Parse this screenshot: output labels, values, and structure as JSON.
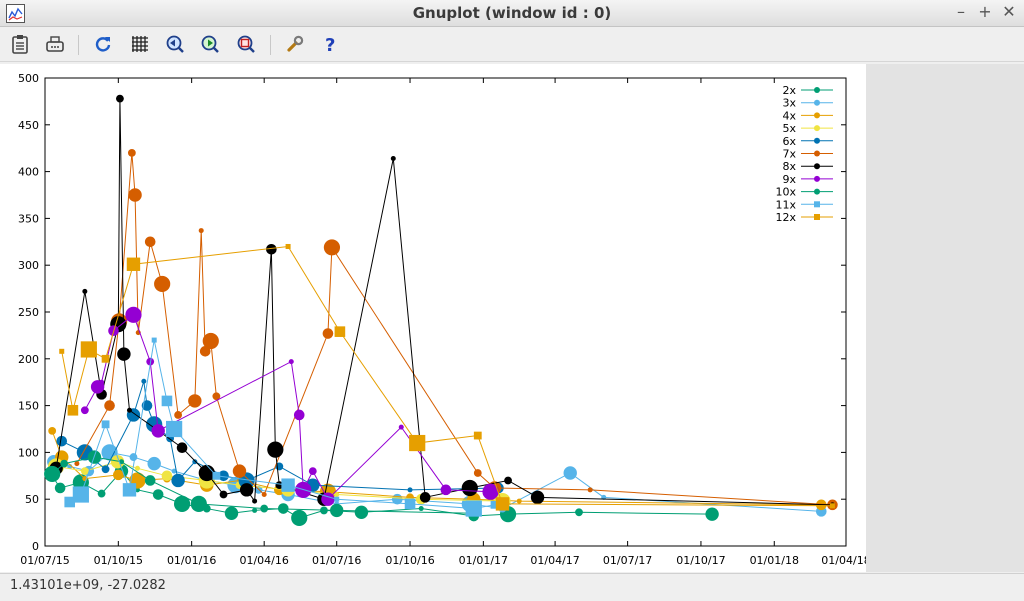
{
  "window": {
    "title": "Gnuplot (window id : 0)",
    "minimize": "–",
    "maximize": "+",
    "close": "✕"
  },
  "toolbar": {
    "buttons": [
      {
        "name": "copy-clipboard-button",
        "icon": "clipboard-icon"
      },
      {
        "name": "print-button",
        "icon": "printer-icon"
      },
      {
        "name": "replot-button",
        "icon": "refresh-icon"
      },
      {
        "name": "grid-button",
        "icon": "grid-icon"
      },
      {
        "name": "previous-zoom-button",
        "icon": "zoom-back-icon"
      },
      {
        "name": "next-zoom-button",
        "icon": "zoom-forward-icon"
      },
      {
        "name": "autoscale-button",
        "icon": "autoscale-icon"
      },
      {
        "name": "settings-button",
        "icon": "wrench-icon"
      },
      {
        "name": "help-button",
        "icon": "help-icon"
      }
    ]
  },
  "status": {
    "coords": "1.43101e+09, -27.0282"
  },
  "chart_data": {
    "type": "scatter",
    "title": "",
    "xlabel": "",
    "ylabel": "",
    "ylim": [
      0,
      500
    ],
    "yticks": [
      0,
      50,
      100,
      150,
      200,
      250,
      300,
      350,
      400,
      450,
      500
    ],
    "xticks": [
      "01/07/15",
      "01/10/15",
      "01/01/16",
      "01/04/16",
      "01/07/16",
      "01/10/16",
      "01/01/17",
      "01/04/17",
      "01/07/17",
      "01/10/17",
      "01/01/18",
      "01/04/18"
    ],
    "xlim": [
      "2015-07-01",
      "2018-04-01"
    ],
    "grid": false,
    "legend_position": "top-right",
    "series": [
      {
        "name": "2x",
        "color": "#009e73",
        "marker": "circle",
        "points": [
          [
            "2015-07-10",
            75
          ],
          [
            "2015-07-20",
            62
          ],
          [
            "2015-08-15",
            68
          ],
          [
            "2015-09-10",
            56
          ],
          [
            "2015-10-05",
            80
          ],
          [
            "2015-10-25",
            60
          ],
          [
            "2015-11-20",
            55
          ],
          [
            "2015-12-20",
            45
          ],
          [
            "2016-01-20",
            40
          ],
          [
            "2016-02-20",
            35
          ],
          [
            "2016-03-20",
            38
          ],
          [
            "2016-04-25",
            40
          ],
          [
            "2016-05-15",
            30
          ],
          [
            "2016-06-15",
            38
          ],
          [
            "2016-08-01",
            36
          ],
          [
            "2016-10-15",
            40
          ],
          [
            "2016-12-20",
            32
          ],
          [
            "2017-02-01",
            34
          ],
          [
            "2017-05-01",
            36
          ],
          [
            "2017-10-15",
            34
          ]
        ]
      },
      {
        "name": "3x",
        "color": "#56b4e9",
        "marker": "circle",
        "points": [
          [
            "2015-07-12",
            90
          ],
          [
            "2015-08-01",
            85
          ],
          [
            "2015-08-25",
            80
          ],
          [
            "2015-09-20",
            100
          ],
          [
            "2015-10-20",
            95
          ],
          [
            "2015-11-15",
            88
          ],
          [
            "2015-12-10",
            80
          ],
          [
            "2016-01-20",
            70
          ],
          [
            "2016-02-25",
            65
          ],
          [
            "2016-03-25",
            60
          ],
          [
            "2016-05-01",
            55
          ],
          [
            "2016-07-01",
            45
          ],
          [
            "2016-09-15",
            50
          ],
          [
            "2016-12-15",
            45
          ],
          [
            "2017-01-25",
            40
          ],
          [
            "2017-04-20",
            78
          ],
          [
            "2017-06-01",
            52
          ],
          [
            "2018-03-01",
            37
          ]
        ]
      },
      {
        "name": "4x",
        "color": "#e69f00",
        "marker": "circle",
        "points": [
          [
            "2015-07-10",
            123
          ],
          [
            "2015-07-22",
            95
          ],
          [
            "2015-08-20",
            72
          ],
          [
            "2015-10-01",
            76
          ],
          [
            "2015-10-25",
            70
          ],
          [
            "2015-12-01",
            72
          ],
          [
            "2016-01-20",
            65
          ],
          [
            "2016-03-01",
            70
          ],
          [
            "2016-04-20",
            60
          ],
          [
            "2016-06-20",
            58
          ],
          [
            "2016-10-01",
            52
          ],
          [
            "2016-12-20",
            50
          ],
          [
            "2017-02-15",
            48
          ],
          [
            "2018-03-01",
            44
          ]
        ]
      },
      {
        "name": "5x",
        "color": "#f0e442",
        "marker": "circle",
        "points": [
          [
            "2015-07-15",
            85
          ],
          [
            "2015-08-20",
            80
          ],
          [
            "2015-09-30",
            90
          ],
          [
            "2015-10-25",
            83
          ],
          [
            "2015-12-01",
            75
          ],
          [
            "2016-01-20",
            70
          ],
          [
            "2016-03-01",
            65
          ],
          [
            "2016-05-01",
            60
          ],
          [
            "2016-07-01",
            55
          ],
          [
            "2016-10-15",
            50
          ],
          [
            "2017-01-25",
            48
          ]
        ]
      },
      {
        "name": "6x",
        "color": "#0072b2",
        "marker": "circle",
        "points": [
          [
            "2015-07-22",
            112
          ],
          [
            "2015-08-20",
            100
          ],
          [
            "2015-09-15",
            82
          ],
          [
            "2015-10-20",
            140
          ],
          [
            "2015-11-02",
            176
          ],
          [
            "2015-11-06",
            150
          ],
          [
            "2015-11-15",
            130
          ],
          [
            "2015-12-05",
            115
          ],
          [
            "2015-12-15",
            70
          ],
          [
            "2016-01-05",
            90
          ],
          [
            "2016-02-10",
            75
          ],
          [
            "2016-03-10",
            70
          ],
          [
            "2016-04-20",
            85
          ],
          [
            "2016-06-01",
            65
          ],
          [
            "2016-10-01",
            60
          ],
          [
            "2017-01-20",
            62
          ]
        ]
      },
      {
        "name": "7x",
        "color": "#d55e00",
        "marker": "circle",
        "points": [
          [
            "2015-08-10",
            88
          ],
          [
            "2015-09-20",
            150
          ],
          [
            "2015-10-02",
            240
          ],
          [
            "2015-10-18",
            420
          ],
          [
            "2015-10-22",
            375
          ],
          [
            "2015-10-26",
            228
          ],
          [
            "2015-11-10",
            325
          ],
          [
            "2015-11-25",
            280
          ],
          [
            "2015-12-15",
            140
          ],
          [
            "2016-01-05",
            155
          ],
          [
            "2016-01-13",
            337
          ],
          [
            "2016-01-18",
            208
          ],
          [
            "2016-01-25",
            219
          ],
          [
            "2016-02-01",
            160
          ],
          [
            "2016-03-01",
            80
          ],
          [
            "2016-04-01",
            55
          ],
          [
            "2016-06-20",
            227
          ],
          [
            "2016-06-25",
            319
          ],
          [
            "2016-12-25",
            78
          ],
          [
            "2017-01-15",
            62
          ],
          [
            "2017-05-15",
            60
          ],
          [
            "2018-03-15",
            44
          ]
        ]
      },
      {
        "name": "8x",
        "color": "#000000",
        "marker": "circle",
        "points": [
          [
            "2015-07-15",
            83
          ],
          [
            "2015-08-20",
            272
          ],
          [
            "2015-09-10",
            162
          ],
          [
            "2015-10-01",
            237
          ],
          [
            "2015-10-03",
            478
          ],
          [
            "2015-10-08",
            205
          ],
          [
            "2015-10-15",
            145
          ],
          [
            "2015-12-20",
            105
          ],
          [
            "2016-01-20",
            78
          ],
          [
            "2016-02-10",
            55
          ],
          [
            "2016-03-10",
            60
          ],
          [
            "2016-03-20",
            48
          ],
          [
            "2016-04-10",
            317
          ],
          [
            "2016-04-15",
            103
          ],
          [
            "2016-04-20",
            65
          ],
          [
            "2016-06-15",
            50
          ],
          [
            "2016-09-10",
            414
          ],
          [
            "2016-10-20",
            52
          ],
          [
            "2016-12-15",
            62
          ],
          [
            "2017-02-01",
            70
          ],
          [
            "2017-03-10",
            52
          ],
          [
            "2018-03-15",
            44
          ]
        ]
      },
      {
        "name": "9x",
        "color": "#9400d3",
        "marker": "circle",
        "points": [
          [
            "2015-08-20",
            145
          ],
          [
            "2015-09-05",
            170
          ],
          [
            "2015-09-10",
            175
          ],
          [
            "2015-09-25",
            230
          ],
          [
            "2015-10-20",
            247
          ],
          [
            "2015-11-10",
            197
          ],
          [
            "2015-11-20",
            123
          ],
          [
            "2016-05-05",
            197
          ],
          [
            "2016-05-15",
            140
          ],
          [
            "2016-05-20",
            60
          ],
          [
            "2016-06-01",
            80
          ],
          [
            "2016-06-20",
            50
          ],
          [
            "2016-09-20",
            127
          ],
          [
            "2016-11-15",
            60
          ],
          [
            "2017-01-10",
            58
          ]
        ]
      },
      {
        "name": "10x",
        "color": "#009e73",
        "marker": "circle",
        "points": [
          [
            "2015-07-10",
            77
          ],
          [
            "2015-07-25",
            88
          ],
          [
            "2015-09-01",
            95
          ],
          [
            "2015-10-05",
            90
          ],
          [
            "2015-11-10",
            70
          ],
          [
            "2016-01-10",
            45
          ],
          [
            "2016-04-01",
            40
          ],
          [
            "2016-07-01",
            38
          ],
          [
            "2016-12-20",
            35
          ]
        ]
      },
      {
        "name": "11x",
        "color": "#56b4e9",
        "marker": "square",
        "points": [
          [
            "2015-08-01",
            47
          ],
          [
            "2015-08-15",
            55
          ],
          [
            "2015-09-15",
            130
          ],
          [
            "2015-10-15",
            60
          ],
          [
            "2015-11-15",
            220
          ],
          [
            "2015-12-01",
            155
          ],
          [
            "2015-12-10",
            125
          ],
          [
            "2016-02-01",
            75
          ],
          [
            "2016-05-01",
            65
          ],
          [
            "2016-07-01",
            50
          ],
          [
            "2016-10-01",
            45
          ],
          [
            "2016-12-20",
            40
          ],
          [
            "2017-01-15",
            44
          ]
        ]
      },
      {
        "name": "12x",
        "color": "#e69f00",
        "marker": "square",
        "points": [
          [
            "2015-07-22",
            208
          ],
          [
            "2015-08-05",
            145
          ],
          [
            "2015-08-25",
            210
          ],
          [
            "2015-09-15",
            200
          ],
          [
            "2015-10-20",
            301
          ],
          [
            "2016-05-01",
            320
          ],
          [
            "2016-07-05",
            229
          ],
          [
            "2016-10-10",
            110
          ],
          [
            "2016-12-25",
            118
          ],
          [
            "2017-01-25",
            45
          ],
          [
            "2018-03-15",
            43
          ]
        ]
      }
    ]
  }
}
